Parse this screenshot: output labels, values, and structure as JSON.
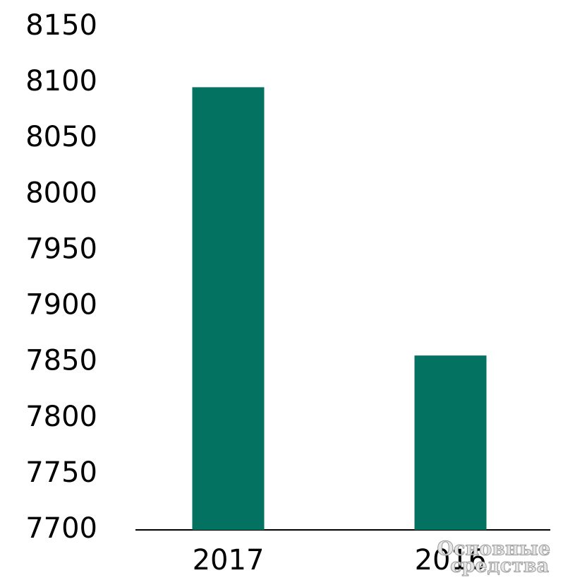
{
  "chart_data": {
    "type": "bar",
    "categories": [
      "2017",
      "2016"
    ],
    "values": [
      8096,
      7856
    ],
    "color": "#047260",
    "ylim": [
      7700,
      8150
    ],
    "yticks": [
      7700,
      7750,
      7800,
      7850,
      7900,
      7950,
      8000,
      8050,
      8100,
      8150
    ],
    "grid": false,
    "watermark": [
      "Основные",
      "средства"
    ]
  }
}
